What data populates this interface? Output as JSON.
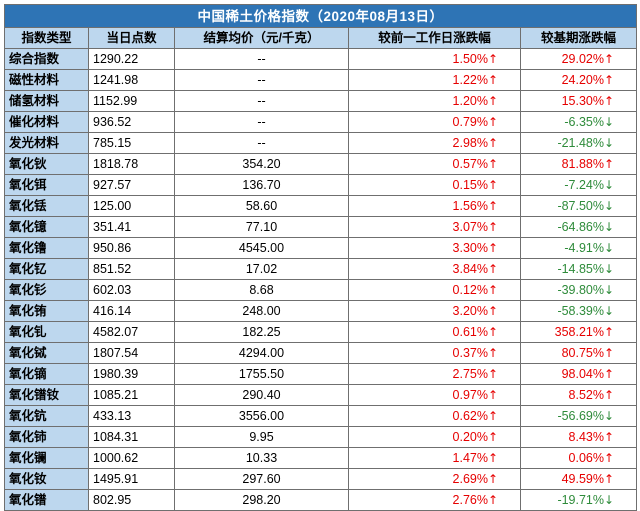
{
  "title": "中国稀土价格指数（2020年08月13日）",
  "headers": [
    "指数类型",
    "当日点数",
    "结算均价（元/千克）",
    "较前一工作日涨跌幅",
    "较基期涨跌幅"
  ],
  "rows": [
    {
      "name": "综合指数",
      "points": "1290.22",
      "price": "--",
      "day_change": "1.50%",
      "day_dir": "up",
      "base_change": "29.02%",
      "base_dir": "up"
    },
    {
      "name": "磁性材料",
      "points": "1241.98",
      "price": "--",
      "day_change": "1.22%",
      "day_dir": "up",
      "base_change": "24.20%",
      "base_dir": "up"
    },
    {
      "name": "储氢材料",
      "points": "1152.99",
      "price": "--",
      "day_change": "1.20%",
      "day_dir": "up",
      "base_change": "15.30%",
      "base_dir": "up"
    },
    {
      "name": "催化材料",
      "points": "936.52",
      "price": "--",
      "day_change": "0.79%",
      "day_dir": "up",
      "base_change": "-6.35%",
      "base_dir": "down"
    },
    {
      "name": "发光材料",
      "points": "785.15",
      "price": "--",
      "day_change": "2.98%",
      "day_dir": "up",
      "base_change": "-21.48%",
      "base_dir": "down"
    },
    {
      "name": "氧化钬",
      "points": "1818.78",
      "price": "354.20",
      "day_change": "0.57%",
      "day_dir": "up",
      "base_change": "81.88%",
      "base_dir": "up"
    },
    {
      "name": "氧化铒",
      "points": "927.57",
      "price": "136.70",
      "day_change": "0.15%",
      "day_dir": "up",
      "base_change": "-7.24%",
      "base_dir": "down"
    },
    {
      "name": "氧化铥",
      "points": "125.00",
      "price": "58.60",
      "day_change": "1.56%",
      "day_dir": "up",
      "base_change": "-87.50%",
      "base_dir": "down"
    },
    {
      "name": "氧化镱",
      "points": "351.41",
      "price": "77.10",
      "day_change": "3.07%",
      "day_dir": "up",
      "base_change": "-64.86%",
      "base_dir": "down"
    },
    {
      "name": "氧化镥",
      "points": "950.86",
      "price": "4545.00",
      "day_change": "3.30%",
      "day_dir": "up",
      "base_change": "-4.91%",
      "base_dir": "down"
    },
    {
      "name": "氧化钇",
      "points": "851.52",
      "price": "17.02",
      "day_change": "3.84%",
      "day_dir": "up",
      "base_change": "-14.85%",
      "base_dir": "down"
    },
    {
      "name": "氧化钐",
      "points": "602.03",
      "price": "8.68",
      "day_change": "0.12%",
      "day_dir": "up",
      "base_change": "-39.80%",
      "base_dir": "down"
    },
    {
      "name": "氧化铕",
      "points": "416.14",
      "price": "248.00",
      "day_change": "3.20%",
      "day_dir": "up",
      "base_change": "-58.39%",
      "base_dir": "down"
    },
    {
      "name": "氧化钆",
      "points": "4582.07",
      "price": "182.25",
      "day_change": "0.61%",
      "day_dir": "up",
      "base_change": "358.21%",
      "base_dir": "up"
    },
    {
      "name": "氧化铽",
      "points": "1807.54",
      "price": "4294.00",
      "day_change": "0.37%",
      "day_dir": "up",
      "base_change": "80.75%",
      "base_dir": "up"
    },
    {
      "name": "氧化镝",
      "points": "1980.39",
      "price": "1755.50",
      "day_change": "2.75%",
      "day_dir": "up",
      "base_change": "98.04%",
      "base_dir": "up"
    },
    {
      "name": "氧化镨钕",
      "points": "1085.21",
      "price": "290.40",
      "day_change": "0.97%",
      "day_dir": "up",
      "base_change": "8.52%",
      "base_dir": "up"
    },
    {
      "name": "氧化钪",
      "points": "433.13",
      "price": "3556.00",
      "day_change": "0.62%",
      "day_dir": "up",
      "base_change": "-56.69%",
      "base_dir": "down"
    },
    {
      "name": "氧化铈",
      "points": "1084.31",
      "price": "9.95",
      "day_change": "0.20%",
      "day_dir": "up",
      "base_change": "8.43%",
      "base_dir": "up"
    },
    {
      "name": "氧化镧",
      "points": "1000.62",
      "price": "10.33",
      "day_change": "1.47%",
      "day_dir": "up",
      "base_change": "0.06%",
      "base_dir": "up"
    },
    {
      "name": "氧化钕",
      "points": "1495.91",
      "price": "297.60",
      "day_change": "2.69%",
      "day_dir": "up",
      "base_change": "49.59%",
      "base_dir": "up"
    },
    {
      "name": "氧化镨",
      "points": "802.95",
      "price": "298.20",
      "day_change": "2.76%",
      "day_dir": "up",
      "base_change": "-19.71%",
      "base_dir": "down"
    }
  ],
  "arrows": {
    "up": "↑",
    "down": "↓"
  },
  "colors": {
    "up": "#e60000",
    "down": "#2e8b3a",
    "title_bg": "#2e74b5",
    "header_bg": "#bdd7ee"
  }
}
